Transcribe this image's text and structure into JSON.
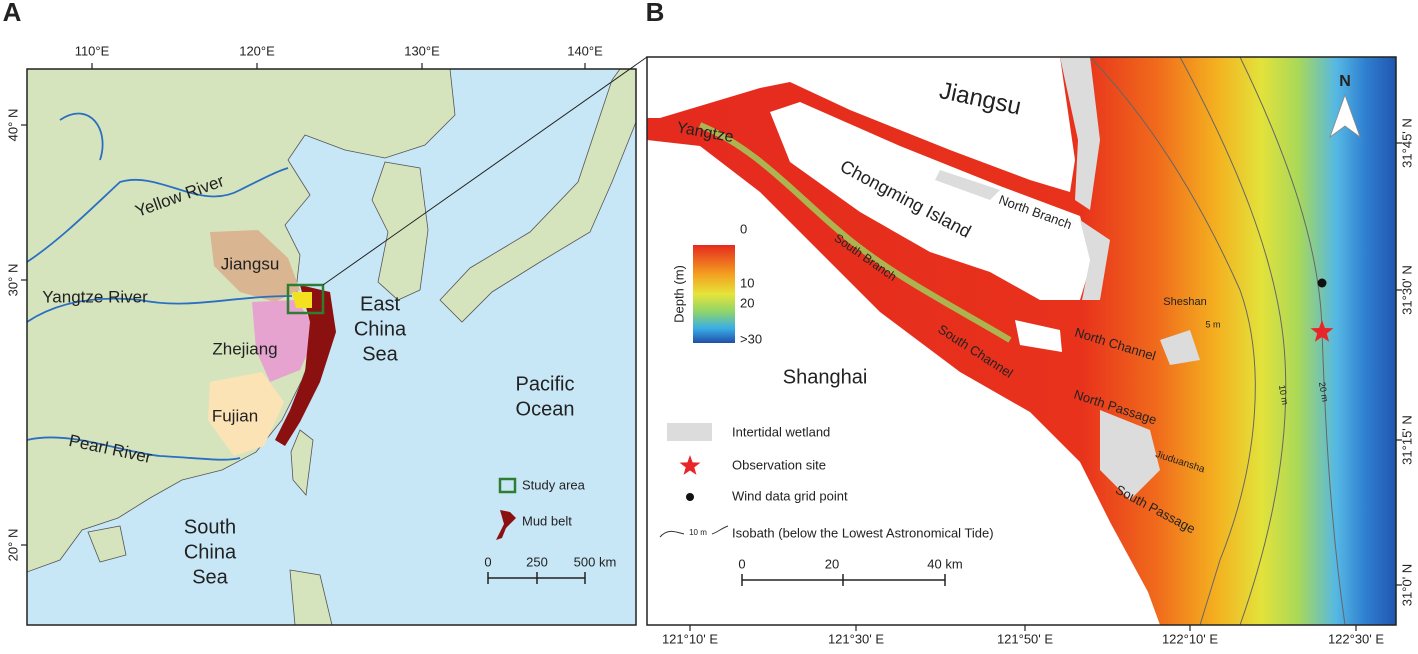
{
  "panel_a": {
    "label": "A",
    "lon_ticks": [
      "110°E",
      "120°E",
      "130°E",
      "140°E"
    ],
    "lat_ticks": [
      "40° N",
      "30° N",
      "20° N"
    ],
    "places": [
      {
        "lines": [
          "Yellow River"
        ]
      },
      {
        "lines": [
          "Jiangsu"
        ]
      },
      {
        "lines": [
          "Yangtze River"
        ]
      },
      {
        "lines": [
          "East",
          "China",
          "Sea"
        ]
      },
      {
        "lines": [
          "Zhejiang"
        ]
      },
      {
        "lines": [
          "Fujian"
        ]
      },
      {
        "lines": [
          "Pearl River"
        ]
      },
      {
        "lines": [
          "Pacific",
          "Ocean"
        ]
      },
      {
        "lines": [
          "South",
          "China",
          "Sea"
        ]
      }
    ],
    "legend": [
      "Study area",
      "Mud belt"
    ],
    "scale": [
      "0",
      "250",
      "500 km"
    ]
  },
  "panel_b": {
    "label": "B",
    "lon_ticks": [
      "121°10' E",
      "121°30' E",
      "121°50' E",
      "122°10' E",
      "122°30' E"
    ],
    "lat_ticks": [
      "31°45' N",
      "31°30' N",
      "31°15' N",
      "31°0' N"
    ],
    "places": [
      "Jiangsu",
      "Yangtze",
      "Chongming Island",
      "North Branch",
      "South Branch",
      "Sheshan",
      "North Channel",
      "South Channel",
      "Shanghai",
      "North Passage",
      "Jiuduansha",
      "South Passage",
      "5 m",
      "10 m",
      "20 m"
    ],
    "depth_legend": {
      "title": "Depth (m)",
      "ticks": [
        "0",
        "10",
        "20",
        ">30"
      ]
    },
    "legend": [
      "Intertidal wetland",
      "Observation site",
      "Wind data grid point",
      "Isobath (below the Lowest Astronomical Tide)"
    ],
    "isobath_sample": "10 m",
    "scale": [
      "0",
      "20",
      "40 km"
    ],
    "north": "N"
  }
}
